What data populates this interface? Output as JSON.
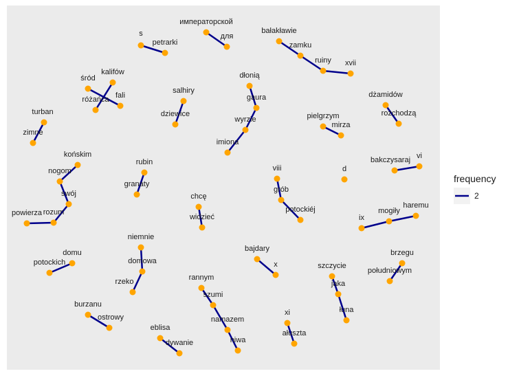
{
  "colors": {
    "panel": "#ebebeb",
    "edge": "#00008b",
    "node": "#ffa500",
    "legend_key_bg": "#f2f2f2"
  },
  "legend": {
    "title": "frequency",
    "entries": [
      {
        "label": "2"
      }
    ]
  },
  "nodes": [
    {
      "id": "s",
      "label": "s"
    },
    {
      "id": "petrarki",
      "label": "petrarki"
    },
    {
      "id": "imperatorskoi",
      "label": "императорской"
    },
    {
      "id": "dlya",
      "label": "для"
    },
    {
      "id": "balaklawie",
      "label": "bałakławie"
    },
    {
      "id": "zamku",
      "label": "zamku"
    },
    {
      "id": "ruiny",
      "label": "ruiny"
    },
    {
      "id": "xvii",
      "label": "xvii"
    },
    {
      "id": "srod",
      "label": "śród"
    },
    {
      "id": "kalifow",
      "label": "kalifów"
    },
    {
      "id": "rozanca",
      "label": "różańca"
    },
    {
      "id": "fali",
      "label": "fali"
    },
    {
      "id": "salhiry",
      "label": "salhiry"
    },
    {
      "id": "dziewice",
      "label": "dziewice"
    },
    {
      "id": "dlonia",
      "label": "dłonią"
    },
    {
      "id": "gaura",
      "label": "gaura"
    },
    {
      "id": "wyrzie",
      "label": "wyrzie"
    },
    {
      "id": "imiona",
      "label": "imiona"
    },
    {
      "id": "dzamidow",
      "label": "dżamidów"
    },
    {
      "id": "rozchodza",
      "label": "rozchodzą"
    },
    {
      "id": "turban",
      "label": "turban"
    },
    {
      "id": "zimne",
      "label": "zimne"
    },
    {
      "id": "pielgrzym",
      "label": "pielgrzym"
    },
    {
      "id": "mirza",
      "label": "mirza"
    },
    {
      "id": "konskim",
      "label": "końskim"
    },
    {
      "id": "nogom",
      "label": "nogom"
    },
    {
      "id": "swoj",
      "label": "swój"
    },
    {
      "id": "powierza",
      "label": "powierza"
    },
    {
      "id": "rozum",
      "label": "rozum"
    },
    {
      "id": "rubin",
      "label": "rubin"
    },
    {
      "id": "granaty",
      "label": "granaty"
    },
    {
      "id": "viii",
      "label": "viii"
    },
    {
      "id": "grob",
      "label": "grób"
    },
    {
      "id": "potockiej",
      "label": "potockiéj"
    },
    {
      "id": "d",
      "label": "d"
    },
    {
      "id": "bakczysaraj",
      "label": "bakczysaraj"
    },
    {
      "id": "vi",
      "label": "vi"
    },
    {
      "id": "chce",
      "label": "chcę"
    },
    {
      "id": "widziec",
      "label": "widzieć"
    },
    {
      "id": "ix",
      "label": "ix"
    },
    {
      "id": "mogily",
      "label": "mogiły"
    },
    {
      "id": "haremu",
      "label": "haremu"
    },
    {
      "id": "niemnie",
      "label": "niemnie"
    },
    {
      "id": "domowa",
      "label": "domowa"
    },
    {
      "id": "rzeko",
      "label": "rzeko"
    },
    {
      "id": "domu",
      "label": "domu"
    },
    {
      "id": "potockich",
      "label": "potockich"
    },
    {
      "id": "bajdary",
      "label": "bajdary"
    },
    {
      "id": "x",
      "label": "x"
    },
    {
      "id": "szczycie",
      "label": "szczycie"
    },
    {
      "id": "jaka",
      "label": "jaka"
    },
    {
      "id": "luna",
      "label": "łuna"
    },
    {
      "id": "brzegu",
      "label": "brzegu"
    },
    {
      "id": "poludniowym",
      "label": "południowym"
    },
    {
      "id": "rannym",
      "label": "rannym"
    },
    {
      "id": "szumi",
      "label": "szumi"
    },
    {
      "id": "namazem",
      "label": "namazem"
    },
    {
      "id": "niwa",
      "label": "niwa"
    },
    {
      "id": "burzanu",
      "label": "burzanu"
    },
    {
      "id": "ostrowy",
      "label": "ostrowy"
    },
    {
      "id": "xi",
      "label": "xi"
    },
    {
      "id": "aluszta",
      "label": "ałuszta"
    },
    {
      "id": "eblisa",
      "label": "eblisa"
    },
    {
      "id": "dywanie",
      "label": "dywanie"
    }
  ],
  "edges": [
    [
      "s",
      "petrarki"
    ],
    [
      "imperatorskoi",
      "dlya"
    ],
    [
      "balaklawie",
      "zamku"
    ],
    [
      "zamku",
      "ruiny"
    ],
    [
      "ruiny",
      "xvii"
    ],
    [
      "srod",
      "fali"
    ],
    [
      "kalifow",
      "rozanca"
    ],
    [
      "salhiry",
      "dziewice"
    ],
    [
      "dlonia",
      "gaura"
    ],
    [
      "gaura",
      "wyrzie"
    ],
    [
      "wyrzie",
      "imiona"
    ],
    [
      "dzamidow",
      "rozchodza"
    ],
    [
      "turban",
      "zimne"
    ],
    [
      "pielgrzym",
      "mirza"
    ],
    [
      "konskim",
      "nogom"
    ],
    [
      "nogom",
      "swoj"
    ],
    [
      "swoj",
      "rozum"
    ],
    [
      "rozum",
      "powierza"
    ],
    [
      "rubin",
      "granaty"
    ],
    [
      "viii",
      "grob"
    ],
    [
      "grob",
      "potockiej"
    ],
    [
      "bakczysaraj",
      "vi"
    ],
    [
      "chce",
      "widziec"
    ],
    [
      "ix",
      "mogily"
    ],
    [
      "mogily",
      "haremu"
    ],
    [
      "niemnie",
      "domowa"
    ],
    [
      "domowa",
      "rzeko"
    ],
    [
      "domu",
      "potockich"
    ],
    [
      "bajdary",
      "x"
    ],
    [
      "szczycie",
      "jaka"
    ],
    [
      "jaka",
      "luna"
    ],
    [
      "brzegu",
      "poludniowym"
    ],
    [
      "rannym",
      "szumi"
    ],
    [
      "szumi",
      "namazem"
    ],
    [
      "namazem",
      "niwa"
    ],
    [
      "burzanu",
      "ostrowy"
    ],
    [
      "xi",
      "aluszta"
    ],
    [
      "eblisa",
      "dywanie"
    ]
  ]
}
